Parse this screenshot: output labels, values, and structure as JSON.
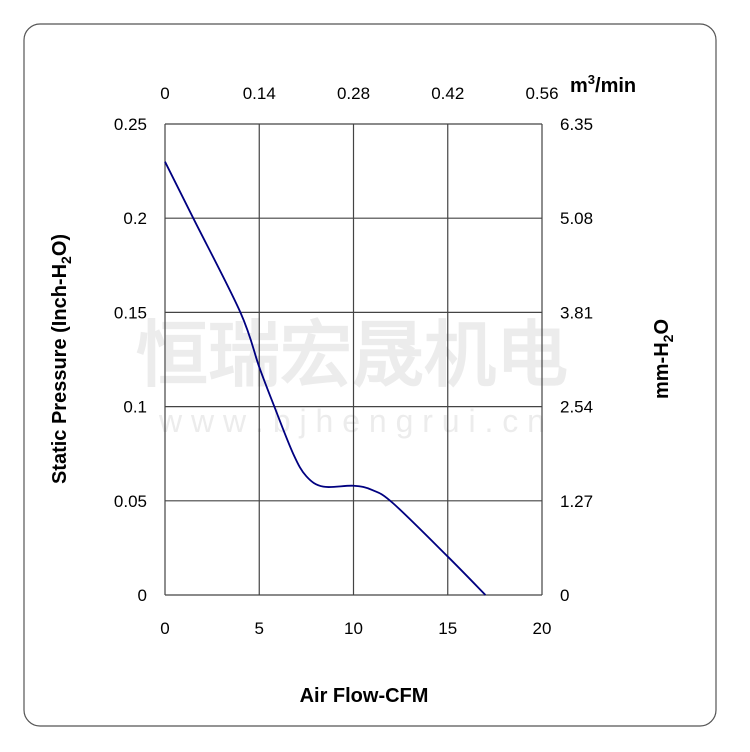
{
  "chart_data": {
    "type": "line",
    "xlabel": "Air Flow-CFM",
    "ylabel": "Static Pressure (Inch-H2O)",
    "ylabel_right": "mm-H2O",
    "xlabel_top": "m3/min",
    "xlim": [
      0,
      20
    ],
    "ylim": [
      0,
      0.25
    ],
    "x_ticks": [
      "0",
      "5",
      "10",
      "15",
      "20"
    ],
    "y_ticks": [
      "0",
      "0.05",
      "0.1",
      "0.15",
      "0.2",
      "0.25"
    ],
    "x_top_ticks": [
      "0",
      "0.14",
      "0.28",
      "0.42",
      "0.56"
    ],
    "y_right_ticks": [
      "0",
      "1.27",
      "2.54",
      "3.81",
      "5.08",
      "6.35"
    ],
    "grid": true,
    "series": [
      {
        "color": "#000080",
        "x": [
          0,
          1.5,
          4.0,
          5.0,
          5.8,
          6.8,
          7.5,
          8.4,
          10.0,
          11.0,
          12.1,
          15.0,
          17.0
        ],
        "y": [
          0.23,
          0.2,
          0.15,
          0.121,
          0.1,
          0.075,
          0.063,
          0.0575,
          0.058,
          0.0557,
          0.0487,
          0.0204,
          0
        ]
      }
    ]
  },
  "watermark": {
    "line1": "恒瑞宏晟机电",
    "line2": "w w w . b j h e n g r u i . c n"
  }
}
